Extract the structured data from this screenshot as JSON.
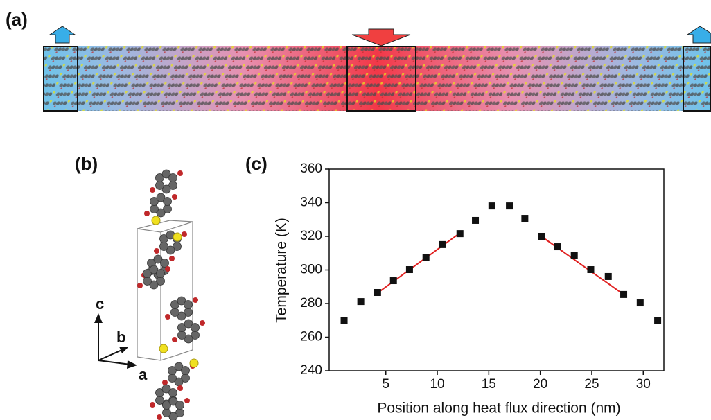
{
  "panels": {
    "a": "(a)",
    "b": "(b)",
    "c": "(c)"
  },
  "crystal_axes": {
    "c": "c",
    "b": "b",
    "a": "a"
  },
  "chart_data": {
    "type": "scatter",
    "x_label": "Position along heat flux direction (nm)",
    "y_label": "Temperature (K)",
    "xlim": [
      -0.5,
      32
    ],
    "ylim": [
      240,
      360
    ],
    "xticks": [
      5,
      10,
      15,
      20,
      25,
      30
    ],
    "yticks": [
      240,
      260,
      280,
      300,
      320,
      340,
      360
    ],
    "points": {
      "color": "#111111",
      "x": [
        0.95,
        2.57,
        4.2,
        5.74,
        7.3,
        8.9,
        10.5,
        12.2,
        13.7,
        15.3,
        17.0,
        18.5,
        20.1,
        21.7,
        23.3,
        24.9,
        26.6,
        28.1,
        29.7,
        31.4
      ],
      "values": [
        269.7,
        281.2,
        286.6,
        293.6,
        300.2,
        307.6,
        315.1,
        321.6,
        329.5,
        338.1,
        338.1,
        330.7,
        320,
        313.8,
        308.5,
        300.2,
        296.1,
        285.4,
        280.4,
        270.1
      ]
    },
    "fits": [
      {
        "color": "#e02020",
        "x": [
          4.2,
          12.2
        ],
        "values": [
          286.3,
          322
        ]
      },
      {
        "color": "#e02020",
        "x": [
          20.1,
          28.3
        ],
        "values": [
          320,
          284.5
        ]
      }
    ]
  }
}
